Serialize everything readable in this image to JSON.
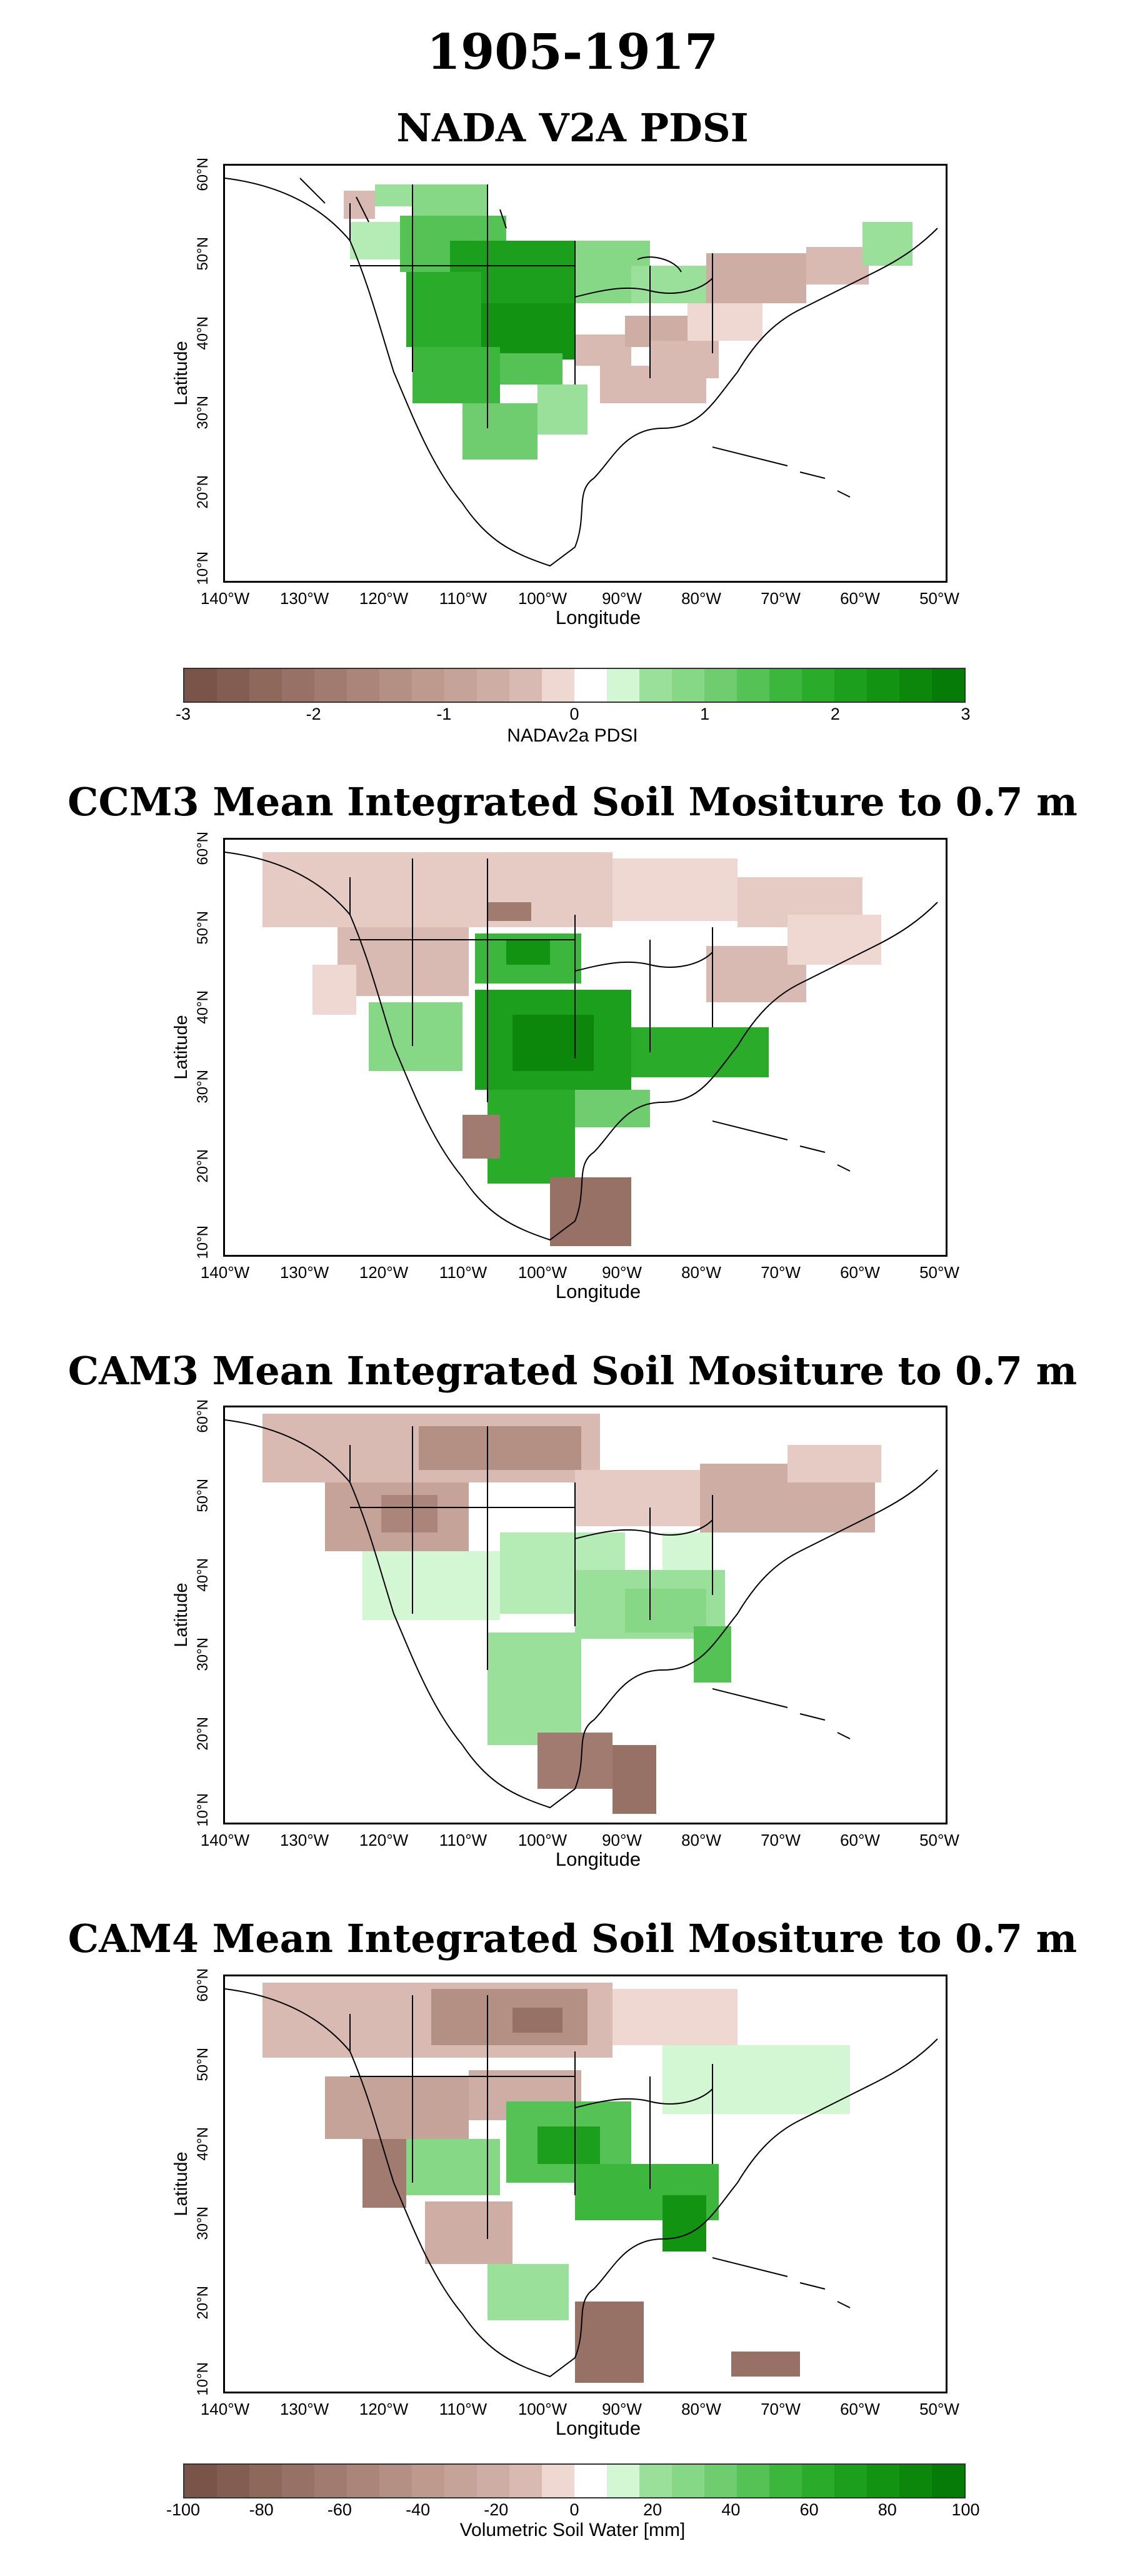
{
  "figure_title": "1905-1917",
  "longitude_ticks": [
    "140°W",
    "130°W",
    "120°W",
    "110°W",
    "100°W",
    "90°W",
    "80°W",
    "70°W",
    "60°W",
    "50°W"
  ],
  "latitude_ticks": [
    "60°N",
    "50°N",
    "40°N",
    "30°N",
    "20°N",
    "10°N"
  ],
  "x_axis_title": "Longitude",
  "y_axis_title": "Latitude",
  "panels": [
    {
      "title": "NADA V2A PDSI"
    },
    {
      "title": "CCM3 Mean Integrated Soil Mositure to 0.7 m"
    },
    {
      "title": "CAM3 Mean Integrated Soil Mositure to 0.7 m"
    },
    {
      "title": "CAM4 Mean Integrated Soil Mositure to 0.7 m"
    }
  ],
  "colorbars": [
    {
      "title": "NADAv2a PDSI",
      "tick_labels": [
        "-3",
        "-2",
        "-1",
        "0",
        "1",
        "2",
        "3"
      ],
      "colors": [
        "#7a5449",
        "#845d52",
        "#8f685c",
        "#987166",
        "#a27b70",
        "#ab857a",
        "#b48f84",
        "#bd998e",
        "#c5a399",
        "#ceaea4",
        "#d8bab2",
        "#f0d8d2",
        "#ffffff",
        "#d2f7d2",
        "#9ae09a",
        "#86d786",
        "#6fcd6f",
        "#55c255",
        "#3cb63c",
        "#2aab2a",
        "#1c9f1c",
        "#129312",
        "#0c870c",
        "#077b07"
      ]
    },
    {
      "title": "Volumetric Soil Water [mm]",
      "tick_labels": [
        "-100",
        "-80",
        "-60",
        "-40",
        "-20",
        "0",
        "20",
        "40",
        "60",
        "80",
        "100"
      ],
      "colors": [
        "#7a5449",
        "#845d52",
        "#8f685c",
        "#987166",
        "#a27b70",
        "#ab857a",
        "#b48f84",
        "#bd998e",
        "#c5a399",
        "#ceaea4",
        "#d8bab2",
        "#f0d8d2",
        "#ffffff",
        "#d2f7d2",
        "#9ae09a",
        "#86d786",
        "#6fcd6f",
        "#55c255",
        "#3cb63c",
        "#2aab2a",
        "#1c9f1c",
        "#129312",
        "#0c870c",
        "#077b07"
      ]
    }
  ]
}
